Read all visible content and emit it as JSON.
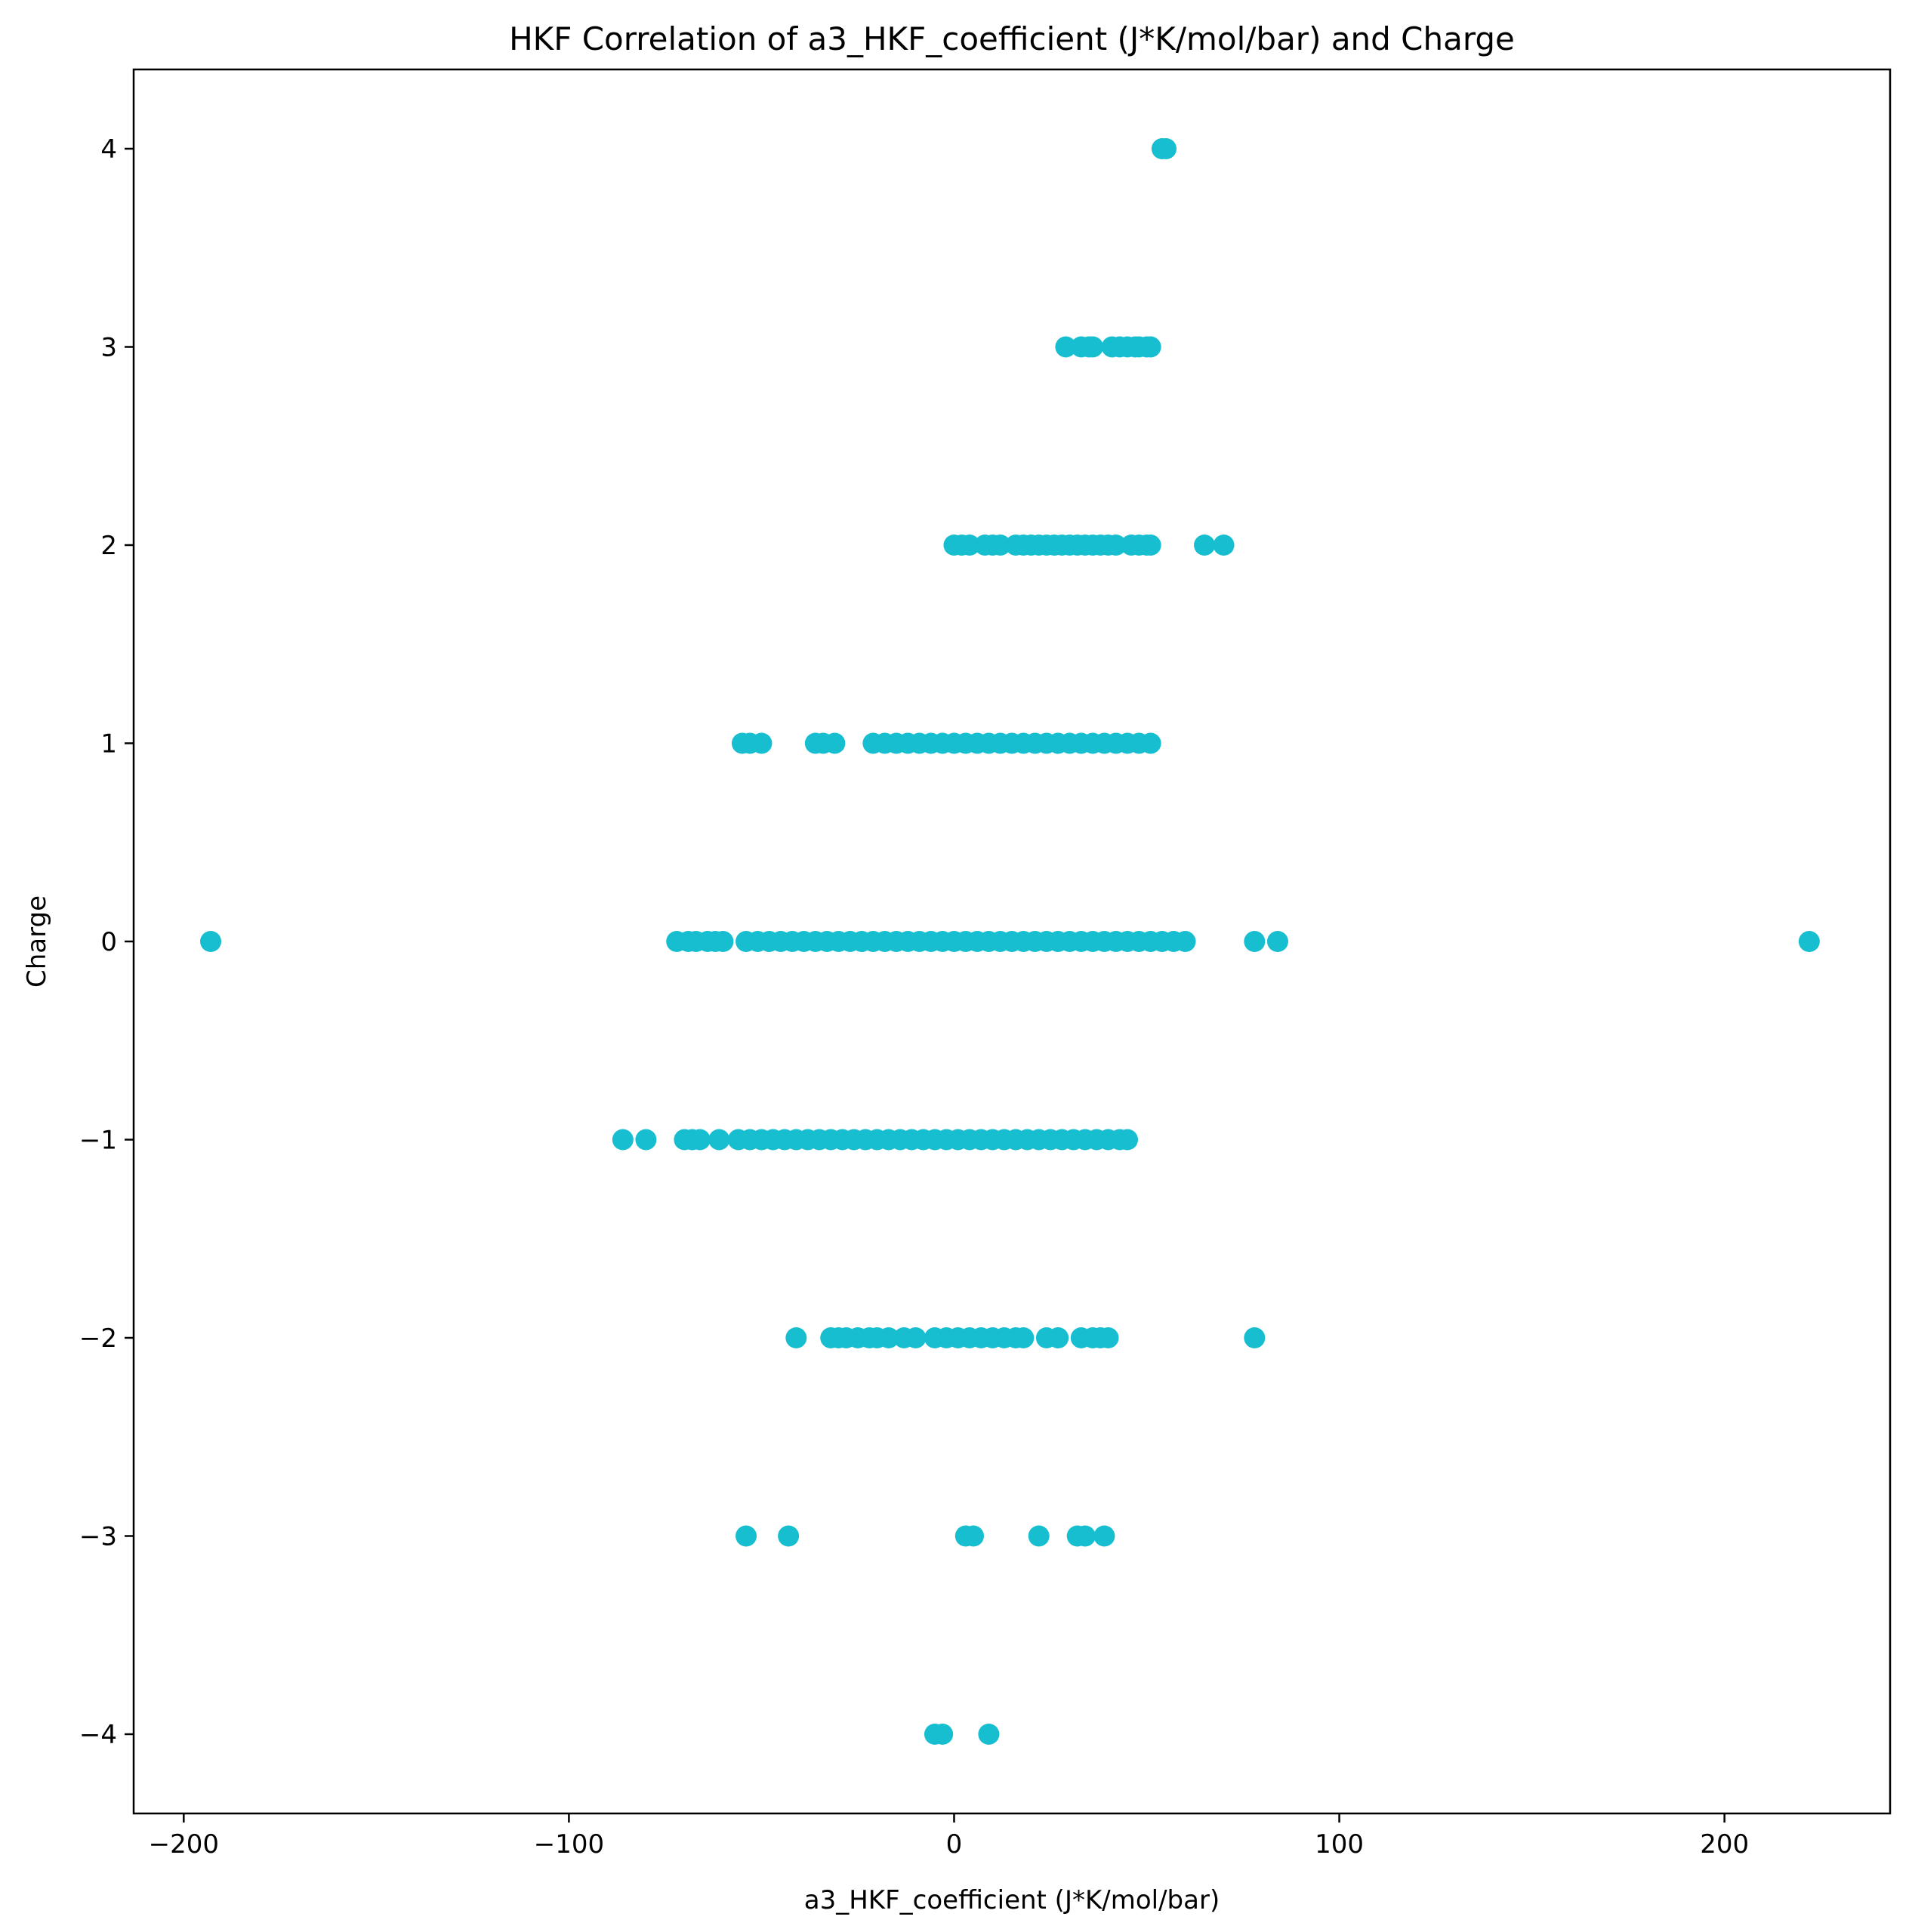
{
  "chart_data": {
    "type": "scatter",
    "title": "HKF Correlation of a3_HKF_coefficient (J*K/mol/bar) and Charge",
    "xlabel": "a3_HKF_coefficient (J*K/mol/bar)",
    "ylabel": "Charge",
    "xlim": [
      -213,
      243
    ],
    "ylim": [
      -4.4,
      4.4
    ],
    "xticks": [
      -200,
      -100,
      0,
      100,
      200
    ],
    "xtick_labels": [
      "−200",
      "−100",
      "0",
      "100",
      "200"
    ],
    "yticks": [
      -4,
      -3,
      -2,
      -1,
      0,
      1,
      2,
      3,
      4
    ],
    "ytick_labels": [
      "−4",
      "−3",
      "−2",
      "−1",
      "0",
      "1",
      "2",
      "3",
      "4"
    ],
    "grid": false,
    "marker_color": "#17becf",
    "series": [
      {
        "points": [
          [
            54,
            4
          ],
          [
            55,
            4
          ],
          [
            29,
            3
          ],
          [
            33,
            3
          ],
          [
            35,
            3
          ],
          [
            36,
            3
          ],
          [
            41,
            3
          ],
          [
            43,
            3
          ],
          [
            45,
            3
          ],
          [
            47,
            3
          ],
          [
            48,
            3
          ],
          [
            50,
            3
          ],
          [
            51,
            3
          ],
          [
            0,
            2
          ],
          [
            2,
            2
          ],
          [
            4,
            2
          ],
          [
            8,
            2
          ],
          [
            10,
            2
          ],
          [
            12,
            2
          ],
          [
            16,
            2
          ],
          [
            18,
            2
          ],
          [
            20,
            2
          ],
          [
            22,
            2
          ],
          [
            24,
            2
          ],
          [
            26,
            2
          ],
          [
            28,
            2
          ],
          [
            30,
            2
          ],
          [
            32,
            2
          ],
          [
            34,
            2
          ],
          [
            36,
            2
          ],
          [
            38,
            2
          ],
          [
            40,
            2
          ],
          [
            42,
            2
          ],
          [
            46,
            2
          ],
          [
            48,
            2
          ],
          [
            50,
            2
          ],
          [
            51,
            2
          ],
          [
            65,
            2
          ],
          [
            70,
            2
          ],
          [
            -55,
            1
          ],
          [
            -53,
            1
          ],
          [
            -50,
            1
          ],
          [
            -36,
            1
          ],
          [
            -34,
            1
          ],
          [
            -31,
            1
          ],
          [
            -21,
            1
          ],
          [
            -18,
            1
          ],
          [
            -15,
            1
          ],
          [
            -12,
            1
          ],
          [
            -9,
            1
          ],
          [
            -6,
            1
          ],
          [
            -3,
            1
          ],
          [
            0,
            1
          ],
          [
            3,
            1
          ],
          [
            6,
            1
          ],
          [
            9,
            1
          ],
          [
            12,
            1
          ],
          [
            15,
            1
          ],
          [
            18,
            1
          ],
          [
            21,
            1
          ],
          [
            24,
            1
          ],
          [
            27,
            1
          ],
          [
            30,
            1
          ],
          [
            33,
            1
          ],
          [
            36,
            1
          ],
          [
            39,
            1
          ],
          [
            42,
            1
          ],
          [
            45,
            1
          ],
          [
            48,
            1
          ],
          [
            51,
            1
          ],
          [
            -193,
            0
          ],
          [
            -72,
            0
          ],
          [
            -69,
            0
          ],
          [
            -67,
            0
          ],
          [
            -64,
            0
          ],
          [
            -62,
            0
          ],
          [
            -60,
            0
          ],
          [
            -54,
            0
          ],
          [
            -51,
            0
          ],
          [
            -48,
            0
          ],
          [
            -45,
            0
          ],
          [
            -42,
            0
          ],
          [
            -39,
            0
          ],
          [
            -36,
            0
          ],
          [
            -33,
            0
          ],
          [
            -30,
            0
          ],
          [
            -27,
            0
          ],
          [
            -24,
            0
          ],
          [
            -21,
            0
          ],
          [
            -18,
            0
          ],
          [
            -15,
            0
          ],
          [
            -12,
            0
          ],
          [
            -9,
            0
          ],
          [
            -6,
            0
          ],
          [
            -3,
            0
          ],
          [
            0,
            0
          ],
          [
            3,
            0
          ],
          [
            6,
            0
          ],
          [
            9,
            0
          ],
          [
            12,
            0
          ],
          [
            15,
            0
          ],
          [
            18,
            0
          ],
          [
            21,
            0
          ],
          [
            24,
            0
          ],
          [
            27,
            0
          ],
          [
            30,
            0
          ],
          [
            33,
            0
          ],
          [
            36,
            0
          ],
          [
            39,
            0
          ],
          [
            42,
            0
          ],
          [
            45,
            0
          ],
          [
            48,
            0
          ],
          [
            51,
            0
          ],
          [
            54,
            0
          ],
          [
            57,
            0
          ],
          [
            60,
            0
          ],
          [
            78,
            0
          ],
          [
            84,
            0
          ],
          [
            222,
            0
          ],
          [
            -86,
            -1
          ],
          [
            -80,
            -1
          ],
          [
            -70,
            -1
          ],
          [
            -68,
            -1
          ],
          [
            -66,
            -1
          ],
          [
            -61,
            -1
          ],
          [
            -56,
            -1
          ],
          [
            -53,
            -1
          ],
          [
            -50,
            -1
          ],
          [
            -47,
            -1
          ],
          [
            -44,
            -1
          ],
          [
            -41,
            -1
          ],
          [
            -38,
            -1
          ],
          [
            -35,
            -1
          ],
          [
            -32,
            -1
          ],
          [
            -29,
            -1
          ],
          [
            -26,
            -1
          ],
          [
            -23,
            -1
          ],
          [
            -20,
            -1
          ],
          [
            -17,
            -1
          ],
          [
            -14,
            -1
          ],
          [
            -11,
            -1
          ],
          [
            -8,
            -1
          ],
          [
            -5,
            -1
          ],
          [
            -2,
            -1
          ],
          [
            1,
            -1
          ],
          [
            4,
            -1
          ],
          [
            7,
            -1
          ],
          [
            10,
            -1
          ],
          [
            13,
            -1
          ],
          [
            16,
            -1
          ],
          [
            19,
            -1
          ],
          [
            22,
            -1
          ],
          [
            25,
            -1
          ],
          [
            28,
            -1
          ],
          [
            31,
            -1
          ],
          [
            34,
            -1
          ],
          [
            37,
            -1
          ],
          [
            40,
            -1
          ],
          [
            43,
            -1
          ],
          [
            45,
            -1
          ],
          [
            -41,
            -2
          ],
          [
            -32,
            -2
          ],
          [
            -30,
            -2
          ],
          [
            -28,
            -2
          ],
          [
            -25,
            -2
          ],
          [
            -22,
            -2
          ],
          [
            -20,
            -2
          ],
          [
            -17,
            -2
          ],
          [
            -13,
            -2
          ],
          [
            -10,
            -2
          ],
          [
            -5,
            -2
          ],
          [
            -2,
            -2
          ],
          [
            1,
            -2
          ],
          [
            4,
            -2
          ],
          [
            7,
            -2
          ],
          [
            10,
            -2
          ],
          [
            13,
            -2
          ],
          [
            16,
            -2
          ],
          [
            18,
            -2
          ],
          [
            24,
            -2
          ],
          [
            27,
            -2
          ],
          [
            33,
            -2
          ],
          [
            36,
            -2
          ],
          [
            38,
            -2
          ],
          [
            40,
            -2
          ],
          [
            78,
            -2
          ],
          [
            -54,
            -3
          ],
          [
            -43,
            -3
          ],
          [
            3,
            -3
          ],
          [
            5,
            -3
          ],
          [
            22,
            -3
          ],
          [
            32,
            -3
          ],
          [
            34,
            -3
          ],
          [
            39,
            -3
          ],
          [
            -5,
            -4
          ],
          [
            -3,
            -4
          ],
          [
            9,
            -4
          ]
        ]
      }
    ]
  }
}
